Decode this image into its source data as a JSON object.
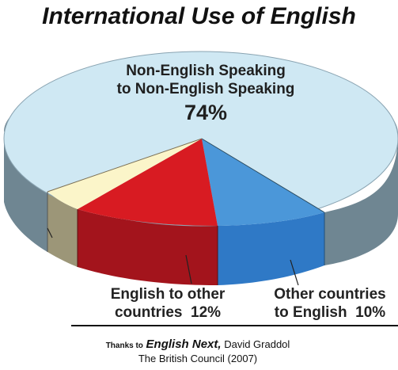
{
  "title": "International Use of English",
  "chart_data": {
    "type": "pie",
    "slices": [
      {
        "label_lines": [
          "Non-English Speaking",
          "to Non-English Speaking"
        ],
        "value_label": "74%",
        "value": 74,
        "color": "#cfe8f3",
        "side": "#6f8692"
      },
      {
        "label_lines": [
          "Other countries",
          "to English"
        ],
        "value_label": "10%",
        "value": 10,
        "color": "#4b97d9",
        "side": "#2f79c6"
      },
      {
        "label_lines": [
          "English to other",
          "countries"
        ],
        "value_label": "12%",
        "value": 12,
        "color": "#d81b22",
        "side": "#a3141c"
      },
      {
        "label_lines": [],
        "value_label": "",
        "value": 4,
        "color": "#fbf5c9",
        "side": "#9c9678"
      }
    ]
  },
  "labels": {
    "big_line1": "Non-English Speaking",
    "big_line2": "to Non-English Speaking",
    "big_pct": "74%",
    "red_line1": "English to other",
    "red_line2": "countries  12%",
    "blue_line1": "Other countries",
    "blue_line2": "to English  10%"
  },
  "credit": {
    "thanks": "Thanks to",
    "book": "English Next,",
    "author": "David Graddol",
    "publisher": "The British Council (2007)"
  }
}
